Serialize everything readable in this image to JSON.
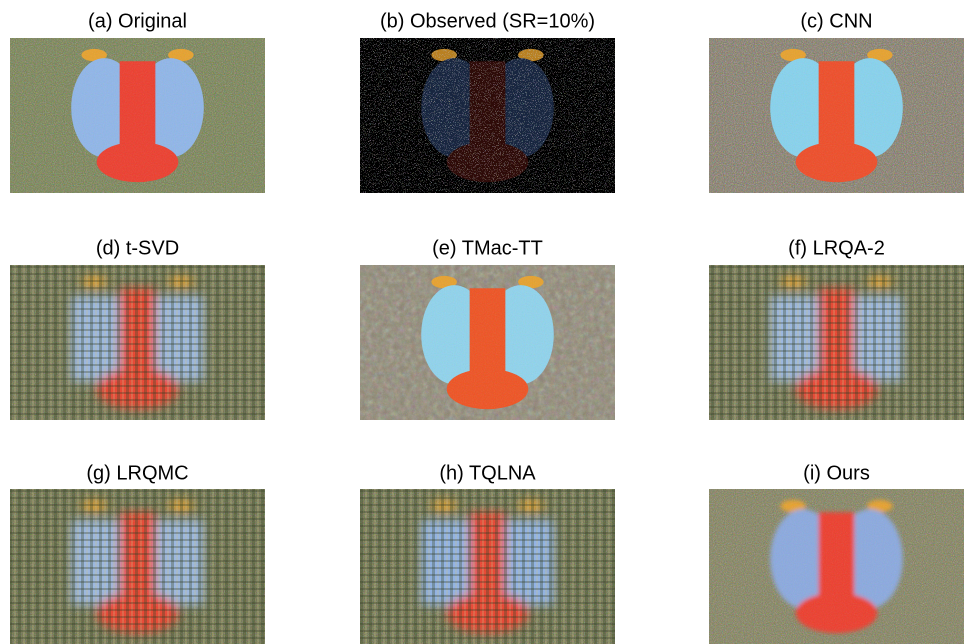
{
  "panels": [
    {
      "title": "(a) Original"
    },
    {
      "title": "(b) Observed (SR=10%)"
    },
    {
      "title": "(c) CNN"
    },
    {
      "title": "(d) t-SVD"
    },
    {
      "title": "(e) TMac-TT"
    },
    {
      "title": "(f) LRQA-2"
    },
    {
      "title": "(g) LRQMC"
    },
    {
      "title": "(h) TQLNA"
    },
    {
      "title": "(i) Ours"
    }
  ]
}
